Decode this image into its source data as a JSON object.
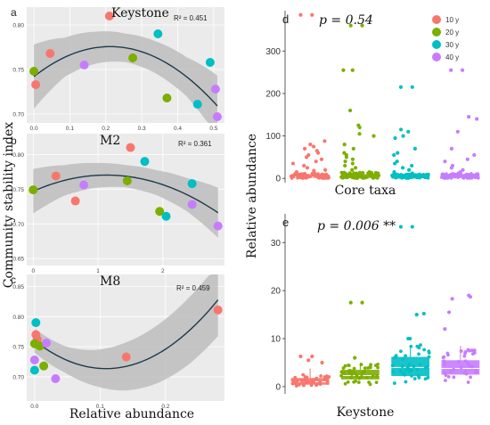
{
  "figure": {
    "left_ylabel": "Community stability index",
    "left_xlabel": "Relative abundance",
    "right_ylabel": "Relative abundance",
    "colors": {
      "10 y": "#F8766D",
      "20 y": "#7CAE00",
      "30 y": "#00BFC4",
      "40 y": "#C77CFF",
      "panel_bg": "#EBEBEB",
      "band": "#BDBDBD",
      "curve": "#1F3A4D"
    }
  },
  "chart_data": [
    {
      "id": "a",
      "type": "scatter",
      "title": "Keystone",
      "r2": "R² = 0.451",
      "xlim": [
        -0.02,
        0.53
      ],
      "ylim": [
        0.69,
        0.82
      ],
      "xticks": [
        "0.0",
        "0.1",
        "0.2",
        "0.3",
        "0.4",
        "0.5"
      ],
      "xtick_values": [
        0,
        0.1,
        0.2,
        0.3,
        0.4,
        0.5
      ],
      "yticks": [
        "0.70",
        "0.75",
        "0.80"
      ],
      "ytick_values": [
        0.7,
        0.75,
        0.8
      ],
      "points": [
        {
          "x": 0.005,
          "y": 0.733,
          "g": "10 y"
        },
        {
          "x": 0.045,
          "y": 0.768,
          "g": "10 y"
        },
        {
          "x": 0.21,
          "y": 0.81,
          "g": "10 y"
        },
        {
          "x": 0.0,
          "y": 0.748,
          "g": "20 y"
        },
        {
          "x": 0.275,
          "y": 0.763,
          "g": "20 y"
        },
        {
          "x": 0.37,
          "y": 0.718,
          "g": "20 y"
        },
        {
          "x": 0.345,
          "y": 0.79,
          "g": "30 y"
        },
        {
          "x": 0.455,
          "y": 0.711,
          "g": "30 y"
        },
        {
          "x": 0.49,
          "y": 0.758,
          "g": "30 y"
        },
        {
          "x": 0.14,
          "y": 0.755,
          "g": "40 y"
        },
        {
          "x": 0.505,
          "y": 0.728,
          "g": "40 y"
        },
        {
          "x": 0.51,
          "y": 0.697,
          "g": "40 y"
        }
      ],
      "fit": [
        0.742,
        0.318,
        -0.75
      ],
      "band_halfwidth": [
        0.036,
        0.022,
        0.018,
        0.016,
        0.018,
        0.022,
        0.034
      ]
    },
    {
      "id": "b",
      "type": "scatter",
      "title": "M2",
      "r2": "R² = 0.361",
      "xlim": [
        -0.1,
        2.95
      ],
      "ylim": [
        0.64,
        0.83
      ],
      "xticks": [
        "0",
        "1",
        "2"
      ],
      "xtick_values": [
        0,
        1,
        2
      ],
      "yticks": [
        "0.65",
        "0.70",
        "0.75",
        "0.80"
      ],
      "ytick_values": [
        0.65,
        0.7,
        0.75,
        0.8
      ],
      "points": [
        {
          "x": 0.35,
          "y": 0.769,
          "g": "10 y"
        },
        {
          "x": 0.65,
          "y": 0.733,
          "g": "10 y"
        },
        {
          "x": 1.5,
          "y": 0.81,
          "g": "10 y"
        },
        {
          "x": 0.0,
          "y": 0.749,
          "g": "20 y"
        },
        {
          "x": 1.45,
          "y": 0.762,
          "g": "20 y"
        },
        {
          "x": 1.95,
          "y": 0.718,
          "g": "20 y"
        },
        {
          "x": 1.72,
          "y": 0.79,
          "g": "30 y"
        },
        {
          "x": 2.05,
          "y": 0.711,
          "g": "30 y"
        },
        {
          "x": 2.45,
          "y": 0.758,
          "g": "30 y"
        },
        {
          "x": 0.78,
          "y": 0.756,
          "g": "40 y"
        },
        {
          "x": 2.45,
          "y": 0.728,
          "g": "40 y"
        },
        {
          "x": 2.85,
          "y": 0.697,
          "g": "40 y"
        }
      ],
      "fit": [
        0.747,
        0.0413,
        -0.0183
      ],
      "band_halfwidth": [
        0.032,
        0.022,
        0.018,
        0.016,
        0.018,
        0.024,
        0.036
      ]
    },
    {
      "id": "c",
      "type": "scatter",
      "title": "M8",
      "r2": "R² = 0.459",
      "xlim": [
        -0.012,
        0.29
      ],
      "ylim": [
        0.66,
        0.87
      ],
      "xticks": [
        "0.0",
        "0.1",
        "0.2"
      ],
      "xtick_values": [
        0,
        0.1,
        0.2
      ],
      "yticks": [
        "0.70",
        "0.75",
        "0.80",
        "0.85"
      ],
      "ytick_values": [
        0.7,
        0.75,
        0.8,
        0.85
      ],
      "points": [
        {
          "x": 0.002,
          "y": 0.77,
          "g": "10 y"
        },
        {
          "x": 0.004,
          "y": 0.762,
          "g": "10 y"
        },
        {
          "x": 0.14,
          "y": 0.733,
          "g": "10 y"
        },
        {
          "x": 0.28,
          "y": 0.811,
          "g": "10 y"
        },
        {
          "x": 0.0,
          "y": 0.755,
          "g": "20 y"
        },
        {
          "x": 0.008,
          "y": 0.751,
          "g": "20 y"
        },
        {
          "x": 0.014,
          "y": 0.718,
          "g": "20 y"
        },
        {
          "x": 0.002,
          "y": 0.79,
          "g": "30 y"
        },
        {
          "x": 0.0,
          "y": 0.711,
          "g": "30 y"
        },
        {
          "x": 0.0,
          "y": 0.728,
          "g": "40 y"
        },
        {
          "x": 0.018,
          "y": 0.756,
          "g": "40 y"
        },
        {
          "x": 0.032,
          "y": 0.697,
          "g": "40 y"
        }
      ],
      "fit": [
        0.76,
        -0.85,
        3.9
      ],
      "band_halfwidth": [
        0.02,
        0.022,
        0.03,
        0.04,
        0.048,
        0.055,
        0.06
      ]
    },
    {
      "id": "d",
      "type": "box",
      "title": "Core taxa",
      "annotation": "p = 0.54",
      "groups": [
        "10 y",
        "20 y",
        "30 y",
        "40 y"
      ],
      "ylim": [
        -10,
        395
      ],
      "yticks": [
        "0",
        "100",
        "200",
        "300"
      ],
      "ytick_values": [
        0,
        100,
        200,
        300
      ],
      "median": [
        3,
        3,
        3,
        3
      ],
      "q1": [
        1,
        1,
        1,
        1
      ],
      "q3": [
        8,
        10,
        7,
        8
      ],
      "outliers": [
        [
          385,
          385,
          88,
          80,
          75,
          70,
          65,
          60,
          55,
          50,
          45,
          40,
          35,
          30,
          25,
          20,
          18,
          15,
          12
        ],
        [
          360,
          360,
          255,
          255,
          160,
          125,
          120,
          105,
          100,
          80,
          70,
          60,
          55,
          50,
          45,
          40,
          35,
          30,
          25,
          20,
          15
        ],
        [
          215,
          215,
          115,
          110,
          100,
          95,
          70,
          60,
          55,
          40,
          35,
          30,
          25,
          20,
          15,
          12
        ],
        [
          255,
          255,
          145,
          140,
          110,
          70,
          55,
          45,
          40,
          30,
          25,
          20,
          15,
          12
        ]
      ]
    },
    {
      "id": "e",
      "type": "box",
      "title": "Keystone",
      "annotation": "p = 0.006 **",
      "groups": [
        "10 y",
        "20 y",
        "30 y",
        "40 y"
      ],
      "ylim": [
        -1.5,
        36
      ],
      "yticks": [
        "0",
        "10",
        "20",
        "30"
      ],
      "ytick_values": [
        0,
        10,
        20,
        30
      ],
      "median": [
        1.0,
        2.3,
        4.0,
        3.8
      ],
      "q1": [
        0.4,
        1.5,
        2.2,
        2.5
      ],
      "q3": [
        1.8,
        3.5,
        6.2,
        5.5
      ],
      "whisker_high": [
        3.8,
        5.0,
        8.5,
        8.5
      ],
      "outliers": [
        [
          6.3,
          6.3,
          5.5,
          5.0
        ],
        [
          17.5,
          17.5,
          6.0
        ],
        [
          33.3,
          33.3,
          15.2,
          15.0,
          10.0,
          10.0
        ],
        [
          19.0,
          18.7,
          18.3,
          15.5,
          12.0
        ]
      ]
    }
  ],
  "legend": {
    "placement": "top-right of panel d",
    "entries": [
      "10 y",
      "20 y",
      "30 y",
      "40 y"
    ]
  }
}
